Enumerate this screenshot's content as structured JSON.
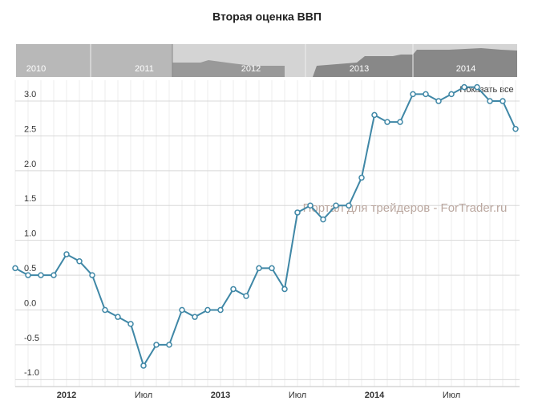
{
  "chart_data": {
    "type": "line",
    "title": "Вторая оценка ВВП",
    "watermark": "Портал для трейдеров - ForTrader.ru",
    "reset_button": "Показать все",
    "navigator_labels": [
      "2010",
      "2011",
      "2012",
      "2013",
      "2014"
    ],
    "categories": [
      null,
      null,
      null,
      null,
      "2012",
      null,
      null,
      null,
      null,
      null,
      "Июл",
      null,
      null,
      null,
      null,
      null,
      "2013",
      null,
      null,
      null,
      null,
      null,
      "Июл",
      null,
      null,
      null,
      null,
      null,
      "2014",
      null,
      null,
      null,
      null,
      null,
      "Июл",
      null,
      null,
      null,
      null,
      null
    ],
    "series": [
      {
        "name": "Вторая оценка ВВП",
        "color": "#3f87a6",
        "values": [
          0.6,
          0.5,
          0.5,
          0.5,
          0.8,
          0.7,
          0.5,
          0.0,
          -0.1,
          -0.2,
          -0.8,
          -0.5,
          -0.5,
          0.0,
          -0.1,
          0.0,
          0.0,
          0.3,
          0.2,
          0.6,
          0.6,
          0.3,
          1.4,
          1.5,
          1.3,
          1.5,
          1.5,
          1.9,
          2.8,
          2.7,
          2.7,
          3.1,
          3.1,
          3.0,
          3.1,
          3.2,
          3.2,
          3.0,
          3.0,
          2.6
        ]
      }
    ],
    "ylim": [
      -1.1,
      3.3
    ],
    "yticks": [
      {
        "value": -1,
        "label": "-1.0"
      },
      -0.5,
      {
        "value": 0,
        "label": "0.0"
      },
      0.5,
      {
        "value": 1,
        "label": "1.0"
      },
      1.5,
      {
        "value": 2,
        "label": "2.0"
      },
      2.5,
      {
        "value": 3,
        "label": "3.0"
      }
    ],
    "grid": true
  }
}
